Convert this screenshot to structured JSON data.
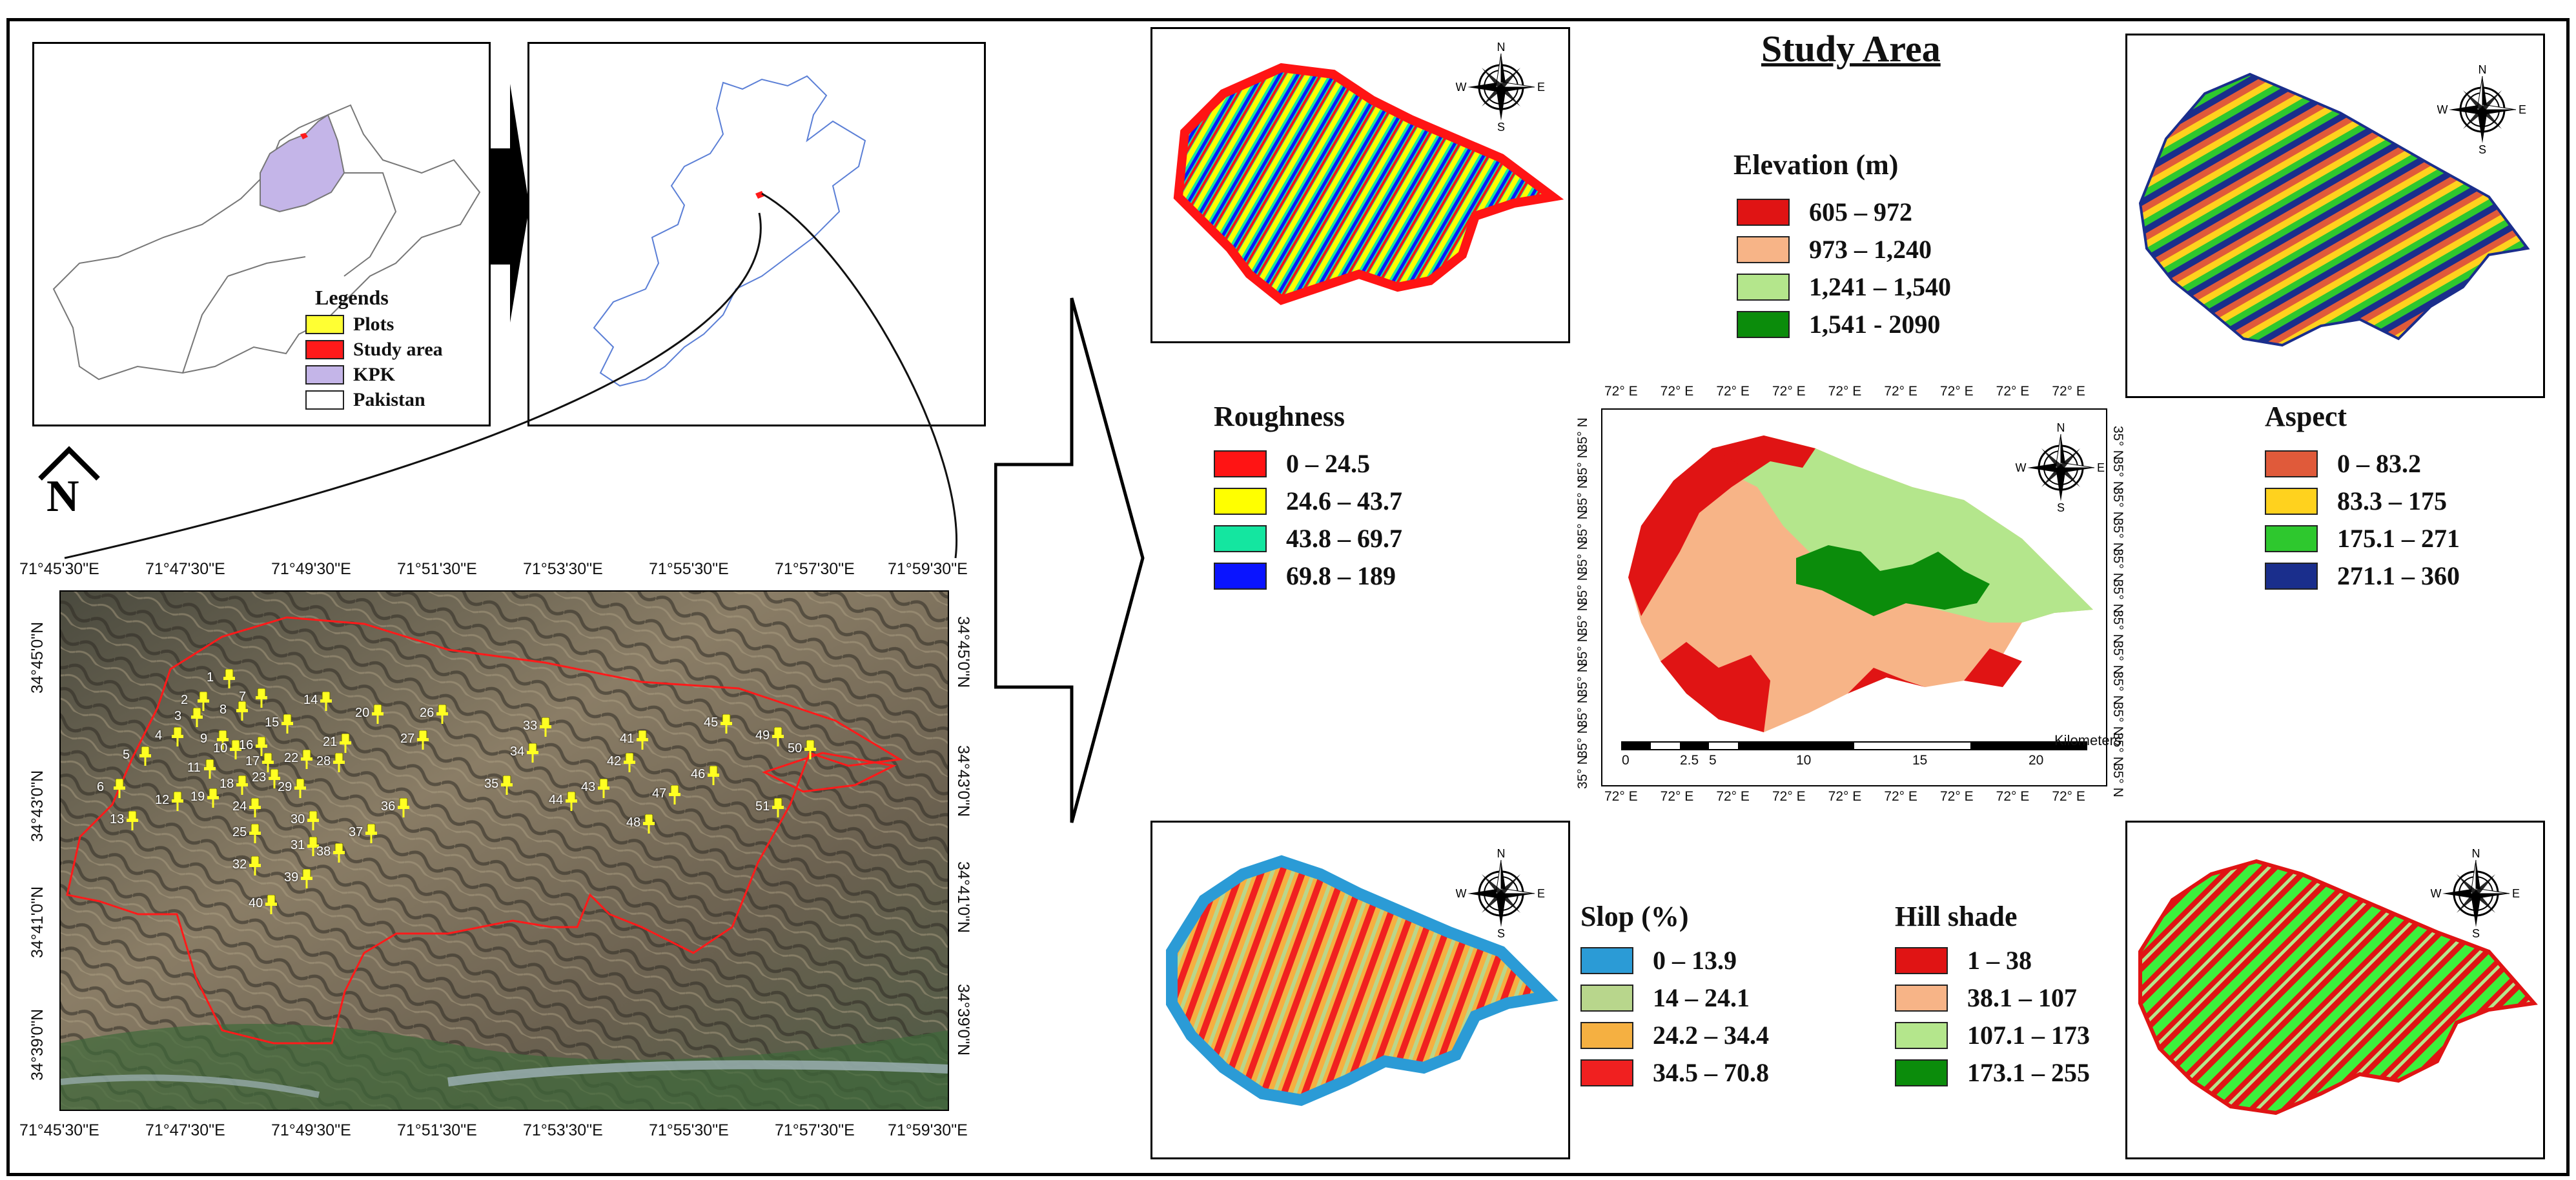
{
  "title": "Study Area",
  "inset_legend": {
    "heading": "Legends",
    "items": [
      {
        "label": "Plots",
        "color": "#ffff33"
      },
      {
        "label": "Study area",
        "color": "#ff1a1a"
      },
      {
        "label": "KPK",
        "color": "#c4b5e8"
      },
      {
        "label": "Pakistan",
        "color": "#ffffff"
      }
    ]
  },
  "north_label": "N",
  "compass_letters": {
    "n": "N",
    "s": "S",
    "e": "E",
    "w": "W"
  },
  "satellite_map": {
    "top_ticks": [
      "71°45'30\"E",
      "71°47'30\"E",
      "71°49'30\"E",
      "71°51'30\"E",
      "71°53'30\"E",
      "71°55'30\"E",
      "71°57'30\"E",
      "71°59'30\"E"
    ],
    "bottom_ticks": [
      "71°45'30\"E",
      "71°47'30\"E",
      "71°49'30\"E",
      "71°51'30\"E",
      "71°53'30\"E",
      "71°55'30\"E",
      "71°57'30\"E",
      "71°59'30\"E"
    ],
    "lat_ticks": [
      "34°45'0\"N",
      "34°43'0\"N",
      "34°41'0\"N",
      "34°39'0\"N"
    ],
    "plots": [
      "1",
      "2",
      "3",
      "4",
      "5",
      "6",
      "7",
      "8",
      "9",
      "10",
      "11",
      "12",
      "13",
      "14",
      "15",
      "16",
      "17",
      "18",
      "19",
      "20",
      "21",
      "22",
      "23",
      "24",
      "25",
      "26",
      "27",
      "28",
      "29",
      "30",
      "31",
      "32",
      "33",
      "34",
      "35",
      "36",
      "37",
      "38",
      "39",
      "40",
      "41",
      "42",
      "43",
      "44",
      "45",
      "46",
      "47",
      "48",
      "49",
      "50",
      "51"
    ]
  },
  "elevation": {
    "title": "Elevation (m)",
    "classes": [
      {
        "label": "605 – 972",
        "color": "#e01414"
      },
      {
        "label": "973 – 1,240",
        "color": "#f7b487"
      },
      {
        "label": "1,241 – 1,540",
        "color": "#b4e68c"
      },
      {
        "label": "1,541 - 2090",
        "color": "#0b8c0b"
      }
    ]
  },
  "roughness": {
    "title": "Roughness",
    "classes": [
      {
        "label": "0 – 24.5",
        "color": "#ff1414"
      },
      {
        "label": "24.6 – 43.7",
        "color": "#ffff00"
      },
      {
        "label": "43.8 – 69.7",
        "color": "#14e6a0"
      },
      {
        "label": "69.8 – 189",
        "color": "#0a14ff"
      }
    ]
  },
  "aspect": {
    "title": "Aspect",
    "classes": [
      {
        "label": "0 – 83.2",
        "color": "#e05a3a"
      },
      {
        "label": "83.3 – 175",
        "color": "#ffd21e"
      },
      {
        "label": "175.1 – 271",
        "color": "#2ec82e"
      },
      {
        "label": "271.1 – 360",
        "color": "#1a2e8c"
      }
    ]
  },
  "slope": {
    "title": "Slop (%)",
    "classes": [
      {
        "label": "0 – 13.9",
        "color": "#2b9bd6"
      },
      {
        "label": "14 – 24.1",
        "color": "#b8d68c"
      },
      {
        "label": "24.2 – 34.4",
        "color": "#f5b041"
      },
      {
        "label": "34.5 – 70.8",
        "color": "#f02020"
      }
    ]
  },
  "hillshade": {
    "title": "Hill shade",
    "classes": [
      {
        "label": "1 – 38",
        "color": "#e01414"
      },
      {
        "label": "38.1 – 107",
        "color": "#f7b487"
      },
      {
        "label": "107.1 – 173",
        "color": "#b4e68c"
      },
      {
        "label": "173.1 – 255",
        "color": "#0b8c0b"
      }
    ]
  },
  "center_map": {
    "lon_tick": "72° E",
    "lat_tick": "35° N",
    "scale_unit": "Kilometers",
    "scale_values": [
      "0",
      "2.5",
      "5",
      "10",
      "15",
      "20"
    ]
  }
}
